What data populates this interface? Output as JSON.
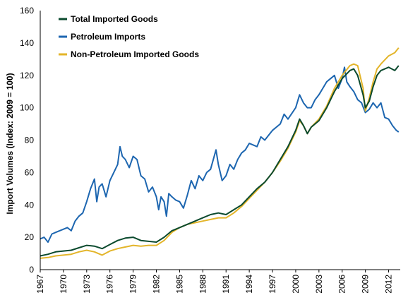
{
  "chart_data": {
    "type": "line",
    "title": "",
    "xlabel": "",
    "ylabel": "Import Volumes (Index: 2009 = 100)",
    "xlim": [
      1967,
      2013.5
    ],
    "ylim": [
      0,
      160
    ],
    "yticks": [
      0,
      20,
      40,
      60,
      80,
      100,
      120,
      140,
      160
    ],
    "xticks": [
      "1967",
      "1970",
      "1973",
      "1976",
      "1979",
      "1982",
      "1985",
      "1988",
      "1991",
      "1994",
      "1997",
      "2000",
      "2003",
      "2006",
      "2009",
      "2012"
    ],
    "grid": false,
    "legend_position": "top-left",
    "series": [
      {
        "name": "Total Imported Goods",
        "color": "#0b4a2e",
        "points": [
          [
            1967,
            8.5
          ],
          [
            1968,
            9.5
          ],
          [
            1969,
            11
          ],
          [
            1970,
            11.5
          ],
          [
            1971,
            12
          ],
          [
            1972,
            13.5
          ],
          [
            1973,
            15
          ],
          [
            1974,
            14.5
          ],
          [
            1975,
            13
          ],
          [
            1976,
            15.5
          ],
          [
            1977,
            18
          ],
          [
            1978,
            19.5
          ],
          [
            1979,
            20
          ],
          [
            1980,
            18
          ],
          [
            1981,
            17.5
          ],
          [
            1982,
            17
          ],
          [
            1983,
            20
          ],
          [
            1984,
            24
          ],
          [
            1985,
            26
          ],
          [
            1986,
            28
          ],
          [
            1987,
            30
          ],
          [
            1988,
            32
          ],
          [
            1989,
            34
          ],
          [
            1990,
            35
          ],
          [
            1991,
            34
          ],
          [
            1992,
            37
          ],
          [
            1993,
            40
          ],
          [
            1994,
            45
          ],
          [
            1995,
            50
          ],
          [
            1996,
            54
          ],
          [
            1997,
            60
          ],
          [
            1998,
            68
          ],
          [
            1999,
            76
          ],
          [
            2000,
            86
          ],
          [
            2000.5,
            93
          ],
          [
            2001,
            89
          ],
          [
            2001.5,
            84
          ],
          [
            2002,
            88
          ],
          [
            2003,
            92
          ],
          [
            2004,
            100
          ],
          [
            2005,
            110
          ],
          [
            2006,
            118
          ],
          [
            2007,
            123
          ],
          [
            2007.5,
            124
          ],
          [
            2008,
            120
          ],
          [
            2008.7,
            108
          ],
          [
            2009,
            100
          ],
          [
            2009.5,
            104
          ],
          [
            2010,
            113
          ],
          [
            2010.5,
            120
          ],
          [
            2011,
            123
          ],
          [
            2012,
            125
          ],
          [
            2012.8,
            123
          ],
          [
            2013.3,
            126
          ]
        ]
      },
      {
        "name": "Petroleum Imports",
        "color": "#1d66b0",
        "points": [
          [
            1967,
            19
          ],
          [
            1967.5,
            20
          ],
          [
            1968,
            17
          ],
          [
            1968.5,
            22
          ],
          [
            1969,
            23
          ],
          [
            1970,
            25
          ],
          [
            1970.5,
            26
          ],
          [
            1971,
            24
          ],
          [
            1971.5,
            30
          ],
          [
            1972,
            33
          ],
          [
            1972.5,
            35
          ],
          [
            1973,
            42
          ],
          [
            1973.5,
            50
          ],
          [
            1974,
            56
          ],
          [
            1974.3,
            42
          ],
          [
            1974.6,
            51
          ],
          [
            1975,
            53
          ],
          [
            1975.5,
            45
          ],
          [
            1976,
            55
          ],
          [
            1976.5,
            60
          ],
          [
            1977,
            65
          ],
          [
            1977.3,
            76
          ],
          [
            1977.6,
            70
          ],
          [
            1978,
            68
          ],
          [
            1978.5,
            63
          ],
          [
            1979,
            70
          ],
          [
            1979.5,
            68
          ],
          [
            1980,
            58
          ],
          [
            1980.5,
            56
          ],
          [
            1981,
            48
          ],
          [
            1981.5,
            51
          ],
          [
            1982,
            45
          ],
          [
            1982.3,
            37
          ],
          [
            1982.6,
            45
          ],
          [
            1983,
            42
          ],
          [
            1983.3,
            33
          ],
          [
            1983.6,
            47
          ],
          [
            1984,
            45
          ],
          [
            1984.5,
            43
          ],
          [
            1985,
            42
          ],
          [
            1985.5,
            38
          ],
          [
            1986,
            46
          ],
          [
            1986.5,
            55
          ],
          [
            1987,
            50
          ],
          [
            1987.5,
            58
          ],
          [
            1988,
            55
          ],
          [
            1988.5,
            60
          ],
          [
            1989,
            62
          ],
          [
            1989.7,
            74
          ],
          [
            1990,
            65
          ],
          [
            1990.5,
            55
          ],
          [
            1991,
            58
          ],
          [
            1991.5,
            65
          ],
          [
            1992,
            62
          ],
          [
            1992.5,
            68
          ],
          [
            1993,
            72
          ],
          [
            1993.5,
            74
          ],
          [
            1994,
            78
          ],
          [
            1995,
            76
          ],
          [
            1995.5,
            82
          ],
          [
            1996,
            80
          ],
          [
            1997,
            86
          ],
          [
            1998,
            90
          ],
          [
            1998.5,
            96
          ],
          [
            1999,
            93
          ],
          [
            2000,
            100
          ],
          [
            2000.5,
            108
          ],
          [
            2001,
            103
          ],
          [
            2001.5,
            100
          ],
          [
            2002,
            100
          ],
          [
            2002.5,
            105
          ],
          [
            2003,
            108
          ],
          [
            2003.5,
            112
          ],
          [
            2004,
            116
          ],
          [
            2004.5,
            118
          ],
          [
            2005,
            120
          ],
          [
            2005.5,
            112
          ],
          [
            2006,
            118
          ],
          [
            2006.3,
            125
          ],
          [
            2006.6,
            116
          ],
          [
            2007,
            113
          ],
          [
            2007.5,
            110
          ],
          [
            2008,
            105
          ],
          [
            2008.5,
            103
          ],
          [
            2009,
            97
          ],
          [
            2009.5,
            99
          ],
          [
            2010,
            103
          ],
          [
            2010.5,
            100
          ],
          [
            2011,
            103
          ],
          [
            2011.5,
            94
          ],
          [
            2012,
            93
          ],
          [
            2012.5,
            89
          ],
          [
            2013,
            86
          ],
          [
            2013.3,
            85
          ]
        ]
      },
      {
        "name": "Non-Petroleum Imported Goods",
        "color": "#e3b52a",
        "points": [
          [
            1967,
            7
          ],
          [
            1968,
            7.5
          ],
          [
            1969,
            8.5
          ],
          [
            1970,
            9
          ],
          [
            1971,
            9.5
          ],
          [
            1972,
            11
          ],
          [
            1973,
            12
          ],
          [
            1974,
            11
          ],
          [
            1975,
            9
          ],
          [
            1976,
            11.5
          ],
          [
            1977,
            13
          ],
          [
            1978,
            14
          ],
          [
            1979,
            15
          ],
          [
            1980,
            14.5
          ],
          [
            1981,
            15
          ],
          [
            1982,
            15
          ],
          [
            1983,
            18
          ],
          [
            1984,
            23
          ],
          [
            1985,
            26
          ],
          [
            1986,
            28
          ],
          [
            1987,
            29
          ],
          [
            1988,
            30
          ],
          [
            1989,
            31
          ],
          [
            1990,
            32
          ],
          [
            1991,
            32
          ],
          [
            1992,
            35
          ],
          [
            1993,
            39
          ],
          [
            1994,
            44
          ],
          [
            1995,
            49
          ],
          [
            1996,
            54
          ],
          [
            1997,
            60
          ],
          [
            1998,
            67
          ],
          [
            1999,
            75
          ],
          [
            2000,
            85
          ],
          [
            2000.5,
            92
          ],
          [
            2001,
            89
          ],
          [
            2001.5,
            84
          ],
          [
            2002,
            88
          ],
          [
            2003,
            93
          ],
          [
            2004,
            101
          ],
          [
            2005,
            112
          ],
          [
            2006,
            120
          ],
          [
            2007,
            126
          ],
          [
            2007.5,
            127
          ],
          [
            2008,
            126
          ],
          [
            2008.7,
            112
          ],
          [
            2009,
            98
          ],
          [
            2009.5,
            106
          ],
          [
            2010,
            116
          ],
          [
            2010.5,
            124
          ],
          [
            2011,
            127
          ],
          [
            2012,
            132
          ],
          [
            2012.8,
            134
          ],
          [
            2013.3,
            137
          ]
        ]
      }
    ]
  }
}
